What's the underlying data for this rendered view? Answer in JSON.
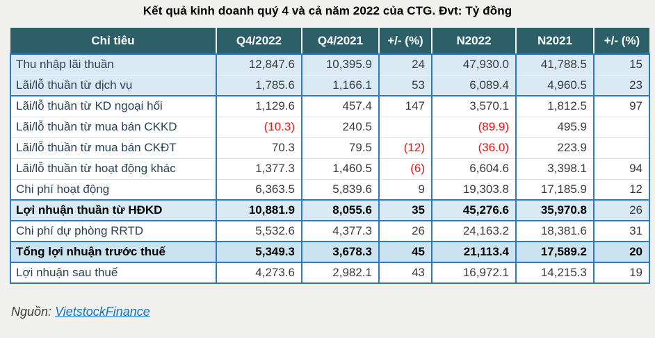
{
  "title": "Kết quả kinh doanh quý 4 và cả năm 2022 của CTG. Đvt: Tỷ đồng",
  "colors": {
    "header_bg": "#2C5F68",
    "header_text": "#FFFFFF",
    "band_blue": "#D9EAF5",
    "total_blue": "#CBE2F0",
    "border_blue": "#2E79C4",
    "row_separator": "#D7E3EE",
    "negative_red": "#EE1111",
    "label_text": "#2A4257",
    "number_text": "#3B3B3B",
    "link_blue": "#1075C2",
    "page_bg": "#F0F0EE",
    "source_text": "#3F3F3F"
  },
  "chart_data": {
    "type": "table",
    "title": "Kết quả kinh doanh quý 4 và cả năm 2022 của CTG",
    "unit": "Đvt: Tỷ đồng",
    "columns": [
      "Chỉ tiêu",
      "Q4/2022",
      "Q4/2021",
      "+/- (%)",
      "N2022",
      "N2021",
      "+/- (%)"
    ],
    "rows": [
      {
        "label": "Thu nhập lãi thuần",
        "values": [
          "12,847.6",
          "10,395.9",
          "24",
          "47,930.0",
          "41,788.5",
          "15"
        ],
        "highlight": true
      },
      {
        "label": "Lãi/lỗ thuần từ dịch vụ",
        "values": [
          "1,785.6",
          "1,166.1",
          "53",
          "6,089.4",
          "4,960.5",
          "23"
        ],
        "highlight": true,
        "strong_bottom": true
      },
      {
        "label": "Lãi/lỗ thuần từ KD ngoại hối",
        "values": [
          "1,129.6",
          "457.4",
          "147",
          "3,570.1",
          "1,812.5",
          "97"
        ]
      },
      {
        "label": "Lãi/lỗ thuần từ mua bán CKKD",
        "values": [
          "(10.3)",
          "240.5",
          "",
          "(89.9)",
          "495.9",
          ""
        ]
      },
      {
        "label": "Lãi/lỗ thuần từ mua bán CKĐT",
        "values": [
          "70.3",
          "79.5",
          "(12)",
          "(36.0)",
          "223.9",
          ""
        ]
      },
      {
        "label": "Lãi/lỗ thuần từ hoạt động khác",
        "values": [
          "1,377.3",
          "1,460.5",
          "(6)",
          "6,604.6",
          "3,398.1",
          "94"
        ]
      },
      {
        "label": "Chi phí hoạt động",
        "values": [
          "6,363.5",
          "5,839.6",
          "9",
          "19,303.8",
          "17,185.9",
          "12"
        ],
        "strong_bottom": true
      },
      {
        "label": "Lợi nhuận thuần từ HĐKD",
        "values": [
          "10,881.9",
          "8,055.6",
          "35",
          "45,276.6",
          "35,970.8",
          "26"
        ],
        "highlight": true,
        "bold": true,
        "bold_last": false,
        "strong_bottom": true
      },
      {
        "label": "Chi phí dự phòng RRTD",
        "values": [
          "5,532.6",
          "4,377.3",
          "26",
          "24,163.2",
          "18,381.6",
          "31"
        ],
        "strong_bottom": true
      },
      {
        "label": "Tổng lợi nhuận trước thuế",
        "values": [
          "5,349.3",
          "3,678.3",
          "45",
          "21,113.4",
          "17,589.2",
          "20"
        ],
        "total": true,
        "bold": true,
        "bold_last": true,
        "strong_bottom": true
      },
      {
        "label": "Lợi nhuận sau thuế",
        "values": [
          "4,273.6",
          "2,982.1",
          "43",
          "16,972.1",
          "14,215.3",
          "19"
        ]
      }
    ]
  },
  "footer": {
    "source_label": "Nguồn:",
    "source_link_text": "VietstockFinance"
  }
}
